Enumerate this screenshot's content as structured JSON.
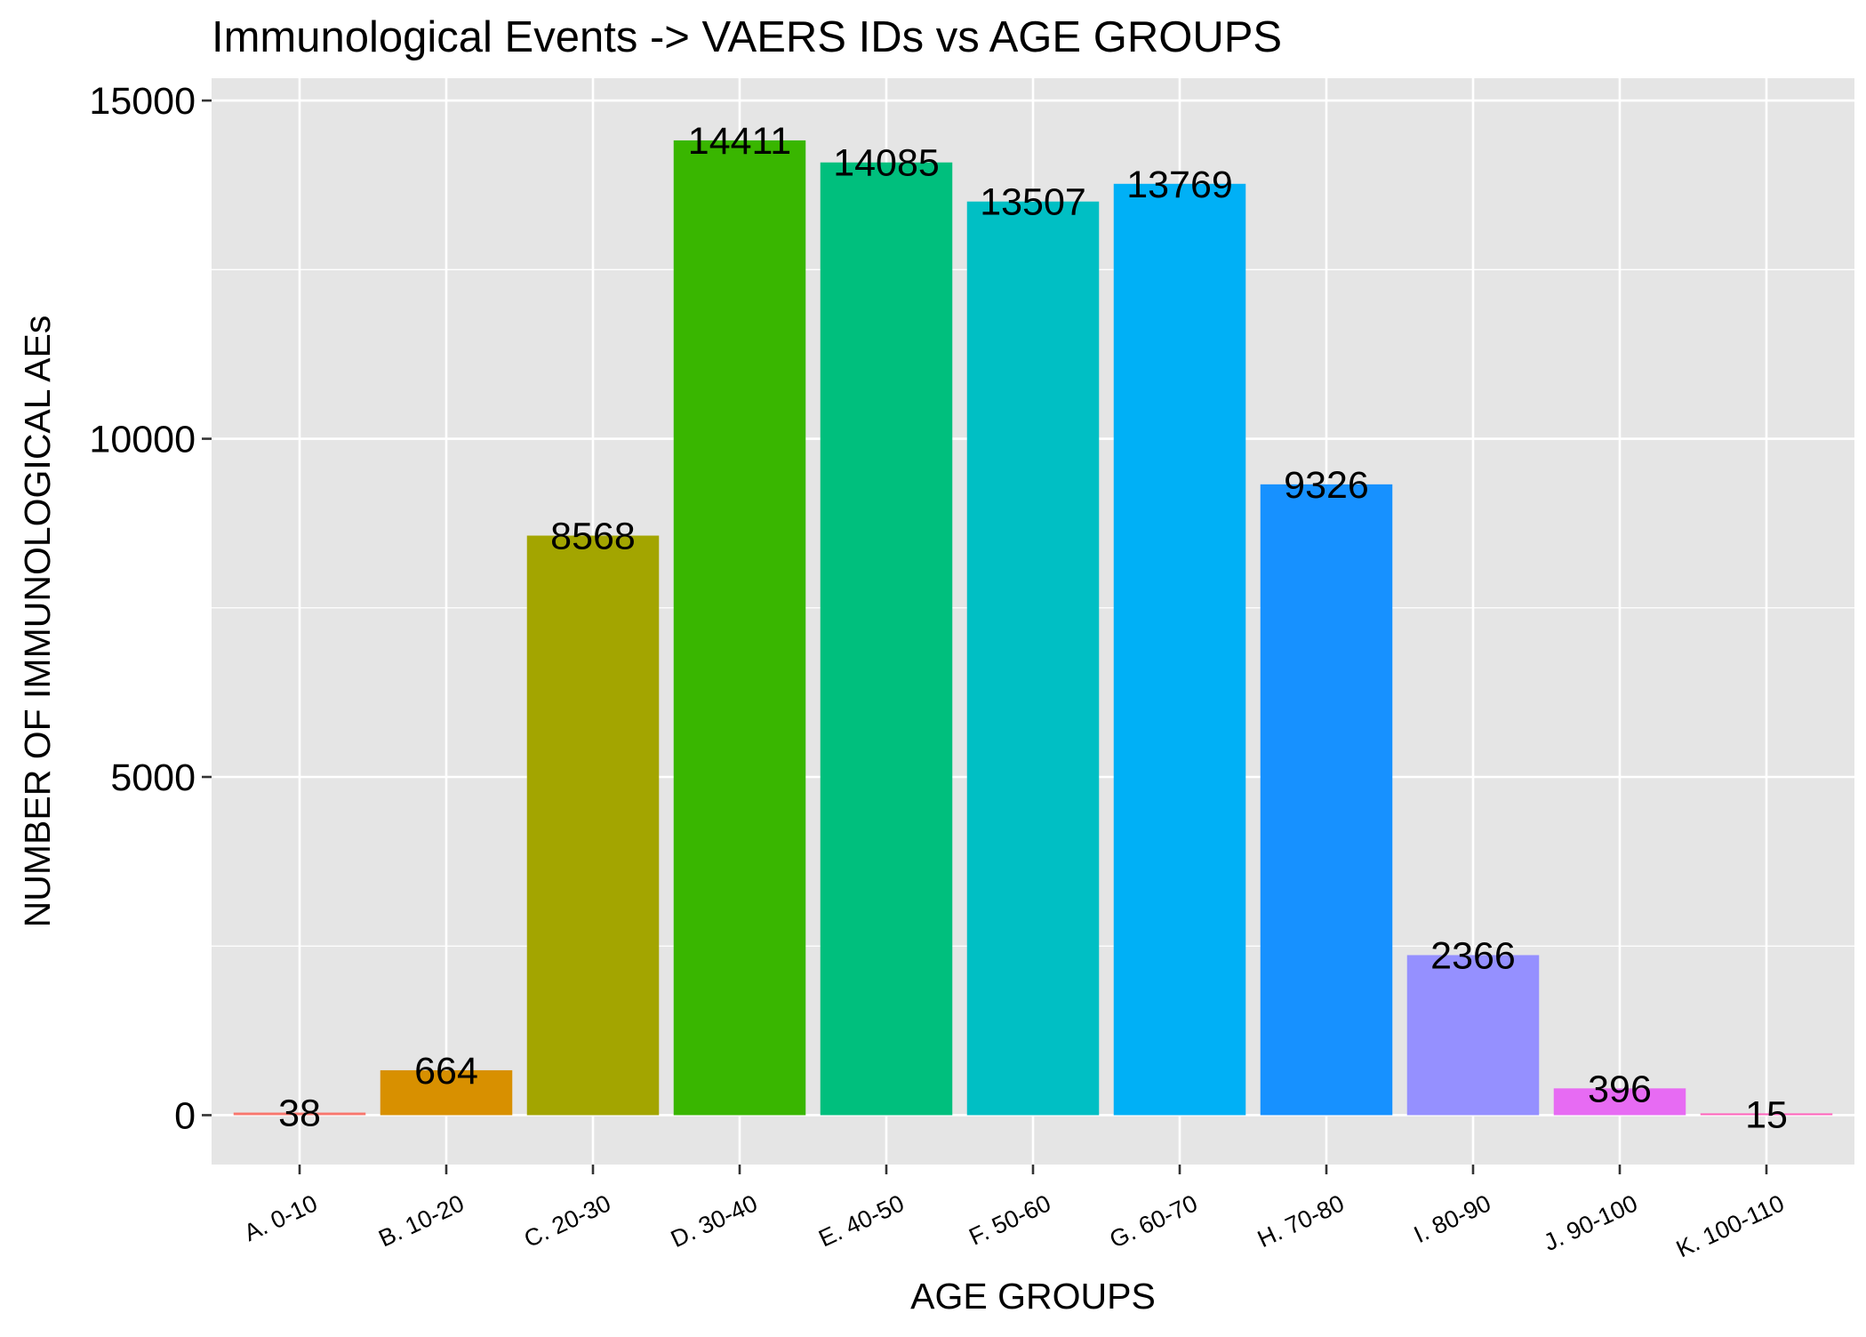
{
  "chart_data": {
    "type": "bar",
    "title": "Immunological Events -> VAERS IDs vs AGE GROUPS",
    "xlabel": "AGE GROUPS",
    "ylabel": "NUMBER OF IMMUNOLOGICAL AEs",
    "categories": [
      "A. 0-10",
      "B. 10-20",
      "C. 20-30",
      "D. 30-40",
      "E. 40-50",
      "F. 50-60",
      "G. 60-70",
      "H. 70-80",
      "I. 80-90",
      "J. 90-100",
      "K. 100-110"
    ],
    "values": [
      38,
      664,
      8568,
      14411,
      14085,
      13507,
      13769,
      9326,
      2366,
      396,
      15
    ],
    "value_labels": [
      "38",
      "664",
      "8568",
      "14411",
      "14085",
      "13507",
      "13769",
      "9326",
      "2366",
      "396",
      "15"
    ],
    "colors": [
      "#f8766d",
      "#d39200",
      "#93aa00",
      "#00ba38",
      "#00c19f",
      "#00b9e3",
      "#00adfa",
      "#619cff",
      "#db72fb",
      "#ff61c3",
      "#ff61c3"
    ],
    "bar_colors": [
      "#f8766d",
      "#d89000",
      "#a3a500",
      "#39b600",
      "#00bf7d",
      "#00bfc4",
      "#00b0f6",
      "#1791ff",
      "#9590ff",
      "#e76bf3",
      "#ff62bc"
    ],
    "y_ticks": [
      0,
      5000,
      10000,
      15000
    ],
    "y_tick_labels": [
      "0",
      "5000",
      "10000",
      "15000"
    ],
    "ylim": [
      -730,
      15330
    ],
    "grid": true,
    "legend": "none",
    "background": "#e5e5e5"
  }
}
